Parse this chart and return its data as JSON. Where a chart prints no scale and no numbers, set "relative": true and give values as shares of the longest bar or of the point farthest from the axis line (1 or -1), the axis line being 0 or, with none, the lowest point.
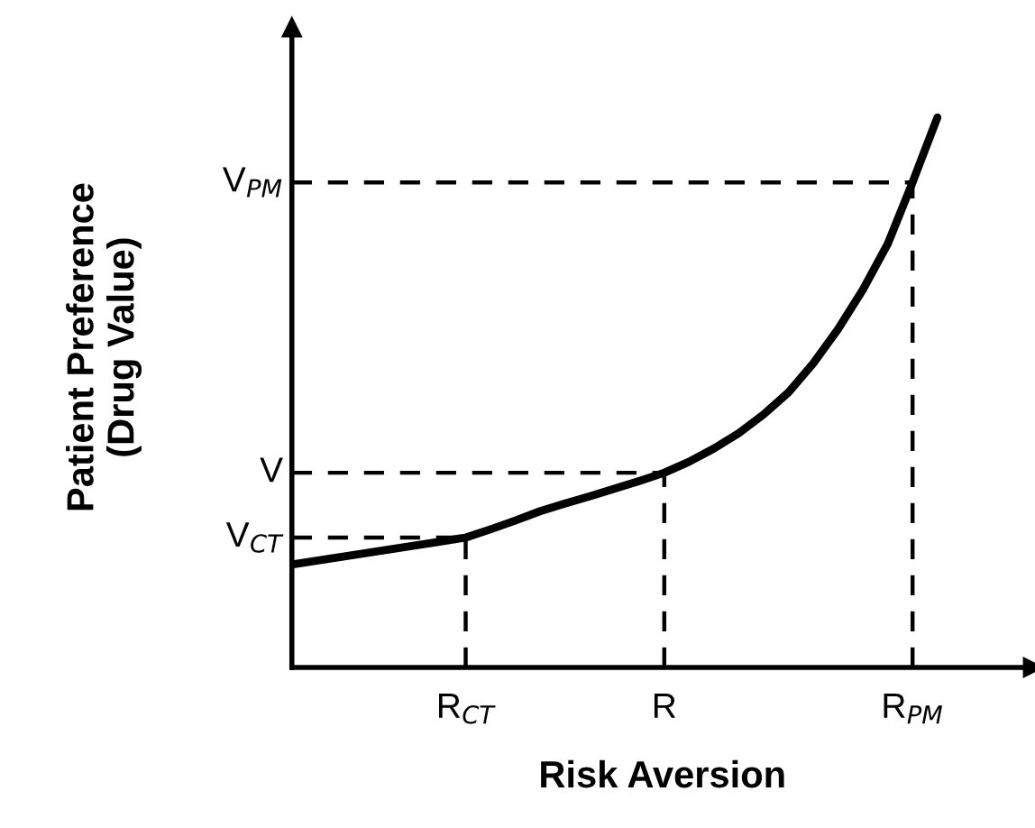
{
  "chart_data": {
    "type": "line",
    "relative": true,
    "xlabel": "Risk Aversion",
    "ylabel": "Patient Preference\n(Drug Value)",
    "categories": [
      null,
      null,
      null,
      null,
      null,
      null,
      null,
      "R$_{CT}$",
      null,
      null,
      null,
      null,
      null,
      null,
      null,
      "R",
      null,
      null,
      null,
      null,
      null,
      null,
      null,
      null,
      null,
      "R$_{PM}$",
      null
    ],
    "series": [
      {
        "color": "#000000",
        "values": [
          0.187,
          0.194,
          0.201,
          0.208,
          0.215,
          0.222,
          0.229,
          0.236,
          0.251,
          0.267,
          0.284,
          0.298,
          0.311,
          0.325,
          0.339,
          0.354,
          0.374,
          0.398,
          0.426,
          0.46,
          0.5,
          0.553,
          0.615,
          0.687,
          0.77,
          0.882,
          1.0
        ]
      }
    ],
    "ref_lines": [
      {
        "axis": "x",
        "value": "R$_{CT}$",
        "line_style": "dashed",
        "color": "#000000"
      },
      {
        "axis": "x",
        "value": "R",
        "line_style": "dashed",
        "color": "#000000"
      },
      {
        "axis": "x",
        "value": "R$_{PM}$",
        "line_style": "dashed",
        "color": "#000000"
      },
      {
        "axis": "y",
        "value": 0.236,
        "label": "V$_{CT}$",
        "line_style": "dashed",
        "color": "#000000"
      },
      {
        "axis": "y",
        "value": 0.354,
        "label": "V",
        "line_style": "dashed",
        "color": "#000000"
      },
      {
        "axis": "y",
        "value": 0.882,
        "label": "V$_{PM}$",
        "line_style": "dashed",
        "color": "#000000"
      }
    ],
    "tick_labels": "x",
    "marker": "none"
  }
}
